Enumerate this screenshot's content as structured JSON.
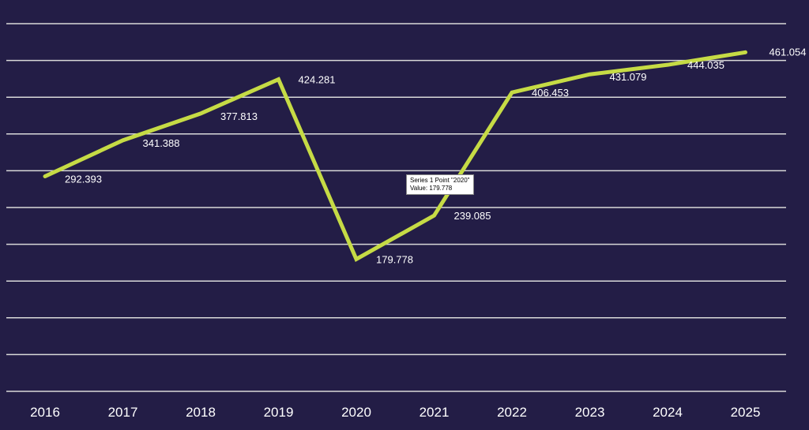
{
  "chart_data": {
    "type": "line",
    "categories": [
      "2016",
      "2017",
      "2018",
      "2019",
      "2020",
      "2021",
      "2022",
      "2023",
      "2024",
      "2025"
    ],
    "series": [
      {
        "values": [
          292.393,
          341.388,
          377.813,
          424.281,
          179.778,
          239.085,
          406.453,
          431.079,
          444.035,
          461.054
        ],
        "labels": [
          "292.393",
          "341.388",
          "377.813",
          "424.281",
          "179.778",
          "239.085",
          "406.453",
          "431.079",
          "444.035",
          "461.054"
        ]
      }
    ],
    "ylim": [
      0,
      500
    ],
    "grid": true,
    "legend": "none",
    "colors": {
      "background": "#231d46",
      "line": "#c6db45",
      "grid": "#d9d9d9",
      "text": "#ffffff"
    }
  },
  "tooltip": {
    "title": "Series 1 Point \"2020\"",
    "value_text": "Value:  179.778"
  }
}
